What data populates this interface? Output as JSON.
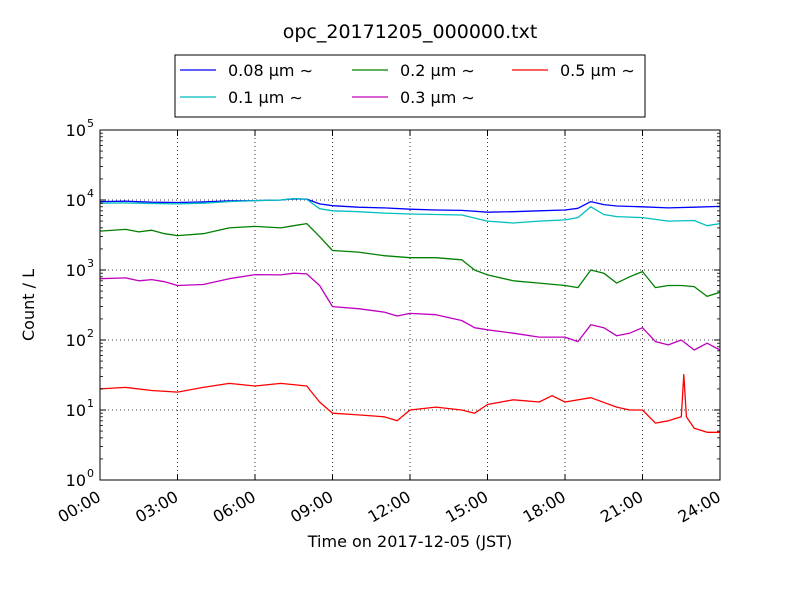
{
  "chart_data": {
    "type": "line",
    "title": "opc_20171205_000000.txt",
    "xlabel": "Time on 2017-12-05 (JST)",
    "ylabel": "Count / L",
    "x_unit": "hours",
    "xlim": [
      0,
      24
    ],
    "ylim": [
      1,
      100000
    ],
    "y_scale": "log",
    "grid": true,
    "legend_position": "top-center",
    "x_ticks": [
      {
        "value": 0,
        "label": "00:00"
      },
      {
        "value": 3,
        "label": "03:00"
      },
      {
        "value": 6,
        "label": "06:00"
      },
      {
        "value": 9,
        "label": "09:00"
      },
      {
        "value": 12,
        "label": "12:00"
      },
      {
        "value": 15,
        "label": "15:00"
      },
      {
        "value": 18,
        "label": "18:00"
      },
      {
        "value": 21,
        "label": "21:00"
      },
      {
        "value": 24,
        "label": "24:00"
      }
    ],
    "y_ticks": [
      {
        "value": 1,
        "base": "10",
        "exp": "0"
      },
      {
        "value": 10,
        "base": "10",
        "exp": "1"
      },
      {
        "value": 100,
        "base": "10",
        "exp": "2"
      },
      {
        "value": 1000,
        "base": "10",
        "exp": "3"
      },
      {
        "value": 10000,
        "base": "10",
        "exp": "4"
      },
      {
        "value": 100000,
        "base": "10",
        "exp": "5"
      }
    ],
    "series": [
      {
        "name": "0.08 μm ∼",
        "color": "#0000ff",
        "x": [
          0,
          1,
          2,
          3,
          4,
          5,
          6,
          7,
          7.5,
          8,
          8.5,
          9,
          10,
          11,
          12,
          13,
          14,
          15,
          16,
          17,
          18,
          18.5,
          19,
          19.5,
          20,
          21,
          22,
          23,
          24
        ],
        "y": [
          9500,
          9600,
          9300,
          9200,
          9400,
          9700,
          9800,
          10000,
          10400,
          10300,
          8800,
          8300,
          7900,
          7700,
          7400,
          7200,
          7100,
          6700,
          6800,
          7000,
          7200,
          7600,
          9500,
          8600,
          8200,
          8000,
          7700,
          7900,
          8100
        ]
      },
      {
        "name": "0.1 μm ∼",
        "color": "#00bfbf",
        "x": [
          0,
          1,
          2,
          3,
          4,
          5,
          6,
          7,
          7.5,
          8,
          8.5,
          9,
          10,
          11,
          12,
          13,
          14,
          15,
          16,
          17,
          18,
          18.5,
          19,
          19.5,
          20,
          21,
          22,
          23,
          23.5,
          24
        ],
        "y": [
          9000,
          9100,
          8900,
          8800,
          9000,
          9500,
          9800,
          10000,
          10500,
          10200,
          7500,
          7000,
          6800,
          6500,
          6300,
          6200,
          6100,
          5000,
          4700,
          5000,
          5200,
          5600,
          8000,
          6200,
          5800,
          5600,
          5000,
          5100,
          4300,
          4600
        ]
      },
      {
        "name": "0.2 μm ∼",
        "color": "#008000",
        "x": [
          0,
          1,
          1.5,
          2,
          2.5,
          3,
          4,
          5,
          6,
          7,
          7.5,
          8,
          8.5,
          9,
          10,
          11,
          12,
          13,
          14,
          14.5,
          15,
          16,
          17,
          18,
          18.5,
          19,
          19.5,
          20,
          20.5,
          21,
          21.5,
          22,
          22.5,
          23,
          23.5,
          24
        ],
        "y": [
          3600,
          3800,
          3500,
          3700,
          3300,
          3100,
          3300,
          4000,
          4200,
          4000,
          4300,
          4600,
          3000,
          1900,
          1800,
          1600,
          1500,
          1500,
          1400,
          1000,
          850,
          700,
          650,
          600,
          560,
          1000,
          900,
          650,
          800,
          950,
          560,
          600,
          600,
          580,
          420,
          480
        ]
      },
      {
        "name": "0.3 μm ∼",
        "color": "#bf00bf",
        "x": [
          0,
          1,
          1.5,
          2,
          2.5,
          3,
          4,
          5,
          6,
          7,
          7.5,
          8,
          8.5,
          9,
          10,
          11,
          11.5,
          12,
          13,
          14,
          14.5,
          15,
          16,
          17,
          18,
          18.5,
          19,
          19.5,
          20,
          20.5,
          21,
          21.5,
          22,
          22.5,
          23,
          23.5,
          24
        ],
        "y": [
          750,
          770,
          700,
          730,
          680,
          600,
          620,
          750,
          860,
          850,
          900,
          880,
          600,
          300,
          280,
          250,
          220,
          240,
          230,
          190,
          150,
          140,
          125,
          110,
          110,
          95,
          165,
          150,
          115,
          125,
          150,
          95,
          85,
          100,
          72,
          90,
          72
        ]
      },
      {
        "name": "0.5 μm ∼",
        "color": "#ff0000",
        "x": [
          0,
          1,
          2,
          3,
          4,
          5,
          6,
          7,
          8,
          8.5,
          9,
          10,
          11,
          11.5,
          12,
          13,
          14,
          14.5,
          15,
          16,
          17,
          17.5,
          18,
          19,
          20,
          20.5,
          21,
          21.5,
          22,
          22.5,
          22.6,
          22.7,
          23,
          23.5,
          24
        ],
        "y": [
          20,
          21,
          19,
          18,
          21,
          24,
          22,
          24,
          22,
          13,
          9,
          8.5,
          8,
          7,
          10,
          11,
          10,
          9,
          12,
          14,
          13,
          16,
          13,
          15,
          11,
          10,
          10,
          6.5,
          7,
          8,
          32,
          8,
          5.5,
          4.8,
          4.8
        ]
      }
    ]
  }
}
